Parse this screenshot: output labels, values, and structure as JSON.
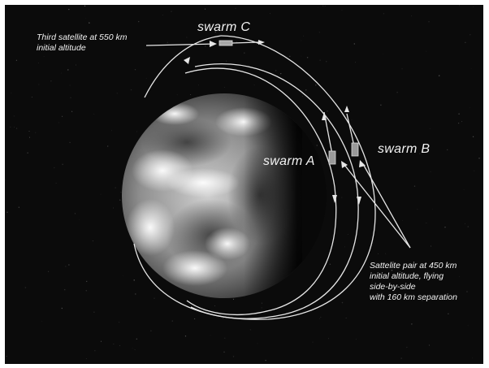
{
  "labels": {
    "swarm_c": "swarm C",
    "swarm_a": "swarm A",
    "swarm_b": "swarm B",
    "third_satellite_line1": "Third satellite at 550 km",
    "third_satellite_line2": "initial altitude",
    "pair_line1": "Sattelite pair at 450 km",
    "pair_line2": "initial altitude, flying",
    "pair_line3": "side-by-side",
    "pair_line4": "with 160 km separation"
  },
  "colors": {
    "space": "#0b0b0b",
    "orbit": "#e6e6e6",
    "earth_light": "#f4f4f4",
    "earth_dark": "#101010"
  },
  "icons": {
    "earth": "earth-globe-icon",
    "satellite": "satellite-icon"
  }
}
